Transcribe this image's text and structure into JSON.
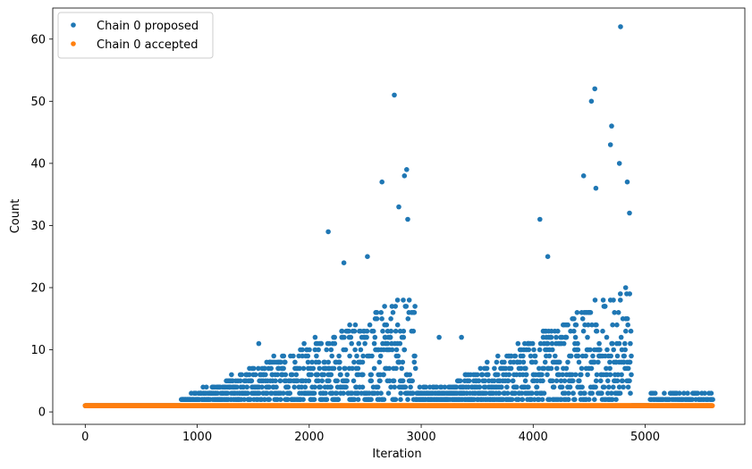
{
  "chart_data": {
    "type": "scatter",
    "xlabel": "Iteration",
    "ylabel": "Count",
    "xlim": [
      -290,
      5890
    ],
    "ylim": [
      -2,
      65
    ],
    "x_ticks": [
      0,
      1000,
      2000,
      3000,
      4000,
      5000
    ],
    "y_ticks": [
      0,
      10,
      20,
      30,
      40,
      50,
      60
    ],
    "grid": false,
    "legend_position": "top-left",
    "n_iterations": 5600,
    "series": [
      {
        "name": "Chain 0 proposed",
        "color": "#1f77b4",
        "values_shown": "1 for iterations 0-850; then dense scatter mostly 2-10 rising to peaks",
        "notable_points": [
          {
            "x": 1550,
            "y": 11
          },
          {
            "x": 2170,
            "y": 29
          },
          {
            "x": 2310,
            "y": 24
          },
          {
            "x": 2520,
            "y": 25
          },
          {
            "x": 2650,
            "y": 37
          },
          {
            "x": 2760,
            "y": 51
          },
          {
            "x": 2800,
            "y": 33
          },
          {
            "x": 2850,
            "y": 38
          },
          {
            "x": 2870,
            "y": 39
          },
          {
            "x": 2880,
            "y": 31
          },
          {
            "x": 3160,
            "y": 12
          },
          {
            "x": 3360,
            "y": 12
          },
          {
            "x": 4060,
            "y": 31
          },
          {
            "x": 4130,
            "y": 25
          },
          {
            "x": 4450,
            "y": 38
          },
          {
            "x": 4520,
            "y": 50
          },
          {
            "x": 4550,
            "y": 52
          },
          {
            "x": 4560,
            "y": 36
          },
          {
            "x": 4700,
            "y": 46
          },
          {
            "x": 4690,
            "y": 43
          },
          {
            "x": 4770,
            "y": 40
          },
          {
            "x": 4780,
            "y": 62
          },
          {
            "x": 4840,
            "y": 37
          },
          {
            "x": 4860,
            "y": 32
          },
          {
            "x": 5260,
            "y": 3
          },
          {
            "x": 5590,
            "y": 3
          }
        ]
      },
      {
        "name": "Chain 0 accepted",
        "color": "#ff7f0e",
        "values_shown": "1 for every iteration 0-5600"
      }
    ]
  }
}
